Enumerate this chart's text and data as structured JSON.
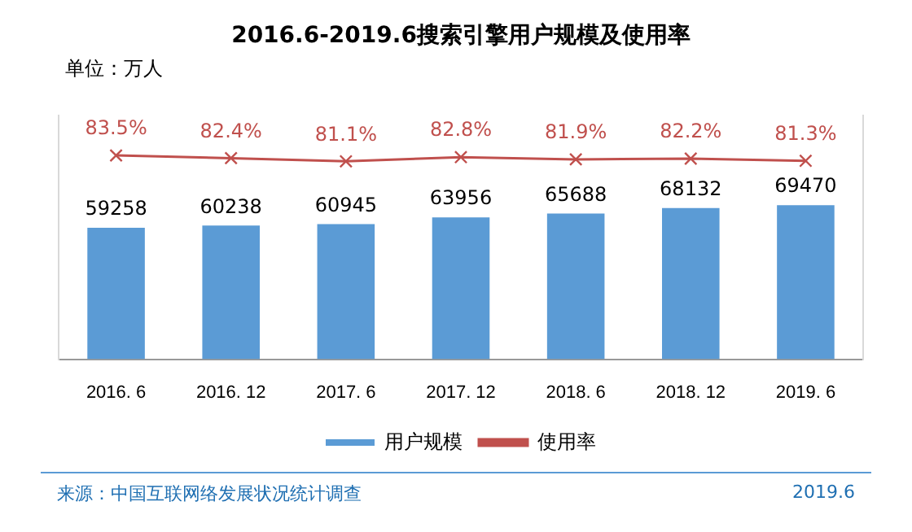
{
  "chart_data": {
    "type": "bar",
    "title": "2016.6-2019.6搜索引擎用户规模及使用率",
    "categories": [
      "2016. 6",
      "2016. 12",
      "2017. 6",
      "2017. 12",
      "2018. 6",
      "2018. 12",
      "2019. 6"
    ],
    "series": [
      {
        "name": "用户规模",
        "type": "bar",
        "color": "#5b9bd5",
        "values": [
          59258,
          60238,
          60945,
          63956,
          65688,
          68132,
          69470
        ]
      },
      {
        "name": "使用率",
        "type": "line",
        "axis": "y2",
        "color": "#c0504d",
        "values": [
          83.5,
          82.4,
          81.1,
          82.8,
          81.9,
          82.2,
          81.3
        ],
        "value_labels": [
          "83.5%",
          "82.4%",
          "81.1%",
          "82.8%",
          "81.9%",
          "82.2%",
          "81.3%"
        ]
      }
    ],
    "ylim": [
      0,
      110000
    ],
    "y2lim": [
      0,
      100
    ],
    "data_labels": true,
    "grid": false,
    "legend": "bottom",
    "marker": "cross",
    "line_style": "solid",
    "annotations": [
      "单位：万人",
      "来源：中国互联网络发展状况统计调查",
      "2019.6"
    ]
  }
}
